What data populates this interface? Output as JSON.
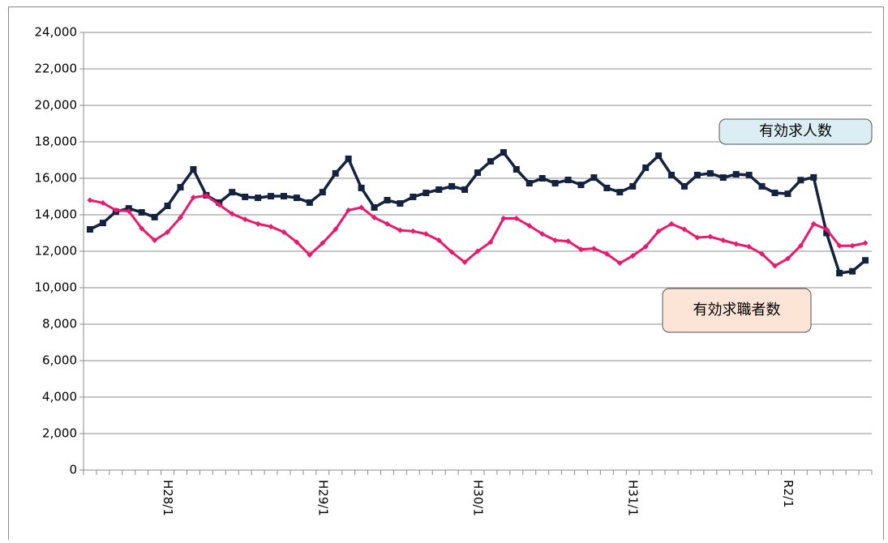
{
  "chart_data": {
    "type": "line",
    "categories": [
      null,
      null,
      null,
      null,
      null,
      null,
      "H28/1",
      null,
      null,
      null,
      null,
      null,
      null,
      null,
      null,
      null,
      null,
      null,
      "H29/1",
      null,
      null,
      null,
      null,
      null,
      null,
      null,
      null,
      null,
      null,
      null,
      "H30/1",
      null,
      null,
      null,
      null,
      null,
      null,
      null,
      null,
      null,
      null,
      null,
      "H31/1",
      null,
      null,
      null,
      null,
      null,
      null,
      null,
      null,
      null,
      null,
      null,
      "R2/1",
      null,
      null,
      null,
      null,
      null,
      null
    ],
    "series": [
      {
        "name": "有効求人数",
        "color": "#13233f",
        "box_color": "#dbeef4",
        "marker": "square",
        "values": [
          13200,
          13550,
          14170,
          14350,
          14130,
          13870,
          14490,
          15510,
          16490,
          15070,
          14670,
          15240,
          14980,
          14930,
          15020,
          15020,
          14930,
          14670,
          15240,
          16270,
          17070,
          15470,
          14400,
          14800,
          14620,
          14980,
          15200,
          15380,
          15560,
          15380,
          16310,
          16930,
          17420,
          16490,
          15730,
          16000,
          15730,
          15910,
          15640,
          16040,
          15470,
          15240,
          15560,
          16580,
          17240,
          16180,
          15560,
          16180,
          16270,
          16040,
          16220,
          16180,
          15560,
          15200,
          15150,
          15900,
          16050,
          13000,
          10800,
          10900,
          11500
        ]
      },
      {
        "name": "有効求職者数",
        "color": "#e8196e",
        "box_color": "#fce4d6",
        "marker": "diamond",
        "values": [
          14800,
          14650,
          14250,
          14200,
          13250,
          12600,
          13050,
          13850,
          14950,
          15050,
          14550,
          14050,
          13750,
          13500,
          13350,
          13050,
          12500,
          11800,
          12450,
          13200,
          14250,
          14400,
          13850,
          13500,
          13150,
          13100,
          12950,
          12600,
          11950,
          11400,
          12000,
          12500,
          13800,
          13800,
          13400,
          12950,
          12600,
          12550,
          12100,
          12150,
          11850,
          11350,
          11750,
          12250,
          13100,
          13500,
          13200,
          12750,
          12800,
          12600,
          12400,
          12250,
          11850,
          11200,
          11600,
          12300,
          13500,
          13200,
          12300,
          12300,
          12450
        ]
      }
    ],
    "ylim": [
      0,
      24000
    ],
    "yticks": [
      0,
      {
        "value": 2000,
        "label": "2,000"
      },
      {
        "value": 4000,
        "label": "4,000"
      },
      {
        "value": 6000,
        "label": "6,000"
      },
      {
        "value": 8000,
        "label": "8,000"
      },
      {
        "value": 10000,
        "label": "10,000"
      },
      {
        "value": 12000,
        "label": "12,000"
      },
      {
        "value": 14000,
        "label": "14,000"
      },
      {
        "value": 16000,
        "label": "16,000"
      },
      {
        "value": 18000,
        "label": "18,000"
      },
      {
        "value": 20000,
        "label": "20,000"
      },
      {
        "value": 22000,
        "label": "22,000"
      },
      {
        "value": 24000,
        "label": "24,000"
      }
    ],
    "grid": true
  }
}
